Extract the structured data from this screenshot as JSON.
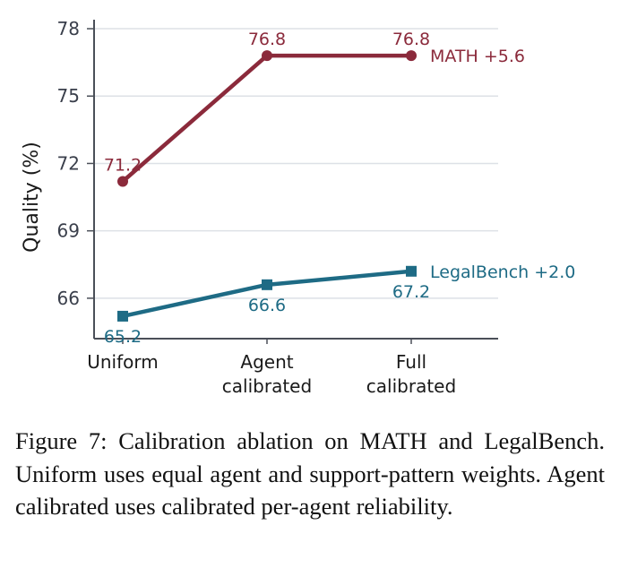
{
  "chart_data": {
    "type": "line",
    "categories": [
      [
        "Uniform"
      ],
      [
        "Agent",
        "calibrated"
      ],
      [
        "Full",
        "calibrated"
      ]
    ],
    "ylabel": "Quality (%)",
    "xlabel": "",
    "ylim": [
      64.2,
      78.4
    ],
    "yticks": [
      66,
      69,
      72,
      75,
      78
    ],
    "grid": "horizontal",
    "series": [
      {
        "name": "MATH",
        "end_label": "MATH +5.6",
        "values": [
          71.2,
          76.8,
          76.8
        ],
        "value_labels": [
          "71.2",
          "76.8",
          "76.8"
        ],
        "label_position": "above",
        "marker": "circle",
        "color": "#8b2a3b"
      },
      {
        "name": "LegalBench",
        "end_label": "LegalBench +2.0",
        "values": [
          65.2,
          66.6,
          67.2
        ],
        "value_labels": [
          "65.2",
          "66.6",
          "67.2"
        ],
        "label_position": "below",
        "marker": "square",
        "color": "#1e6b85"
      }
    ]
  },
  "caption": "Figure 7: Calibration ablation on MATH and LegalBench. Uniform uses equal agent and support-pattern weights. Agent calibrated uses calibrated per-agent reliability."
}
